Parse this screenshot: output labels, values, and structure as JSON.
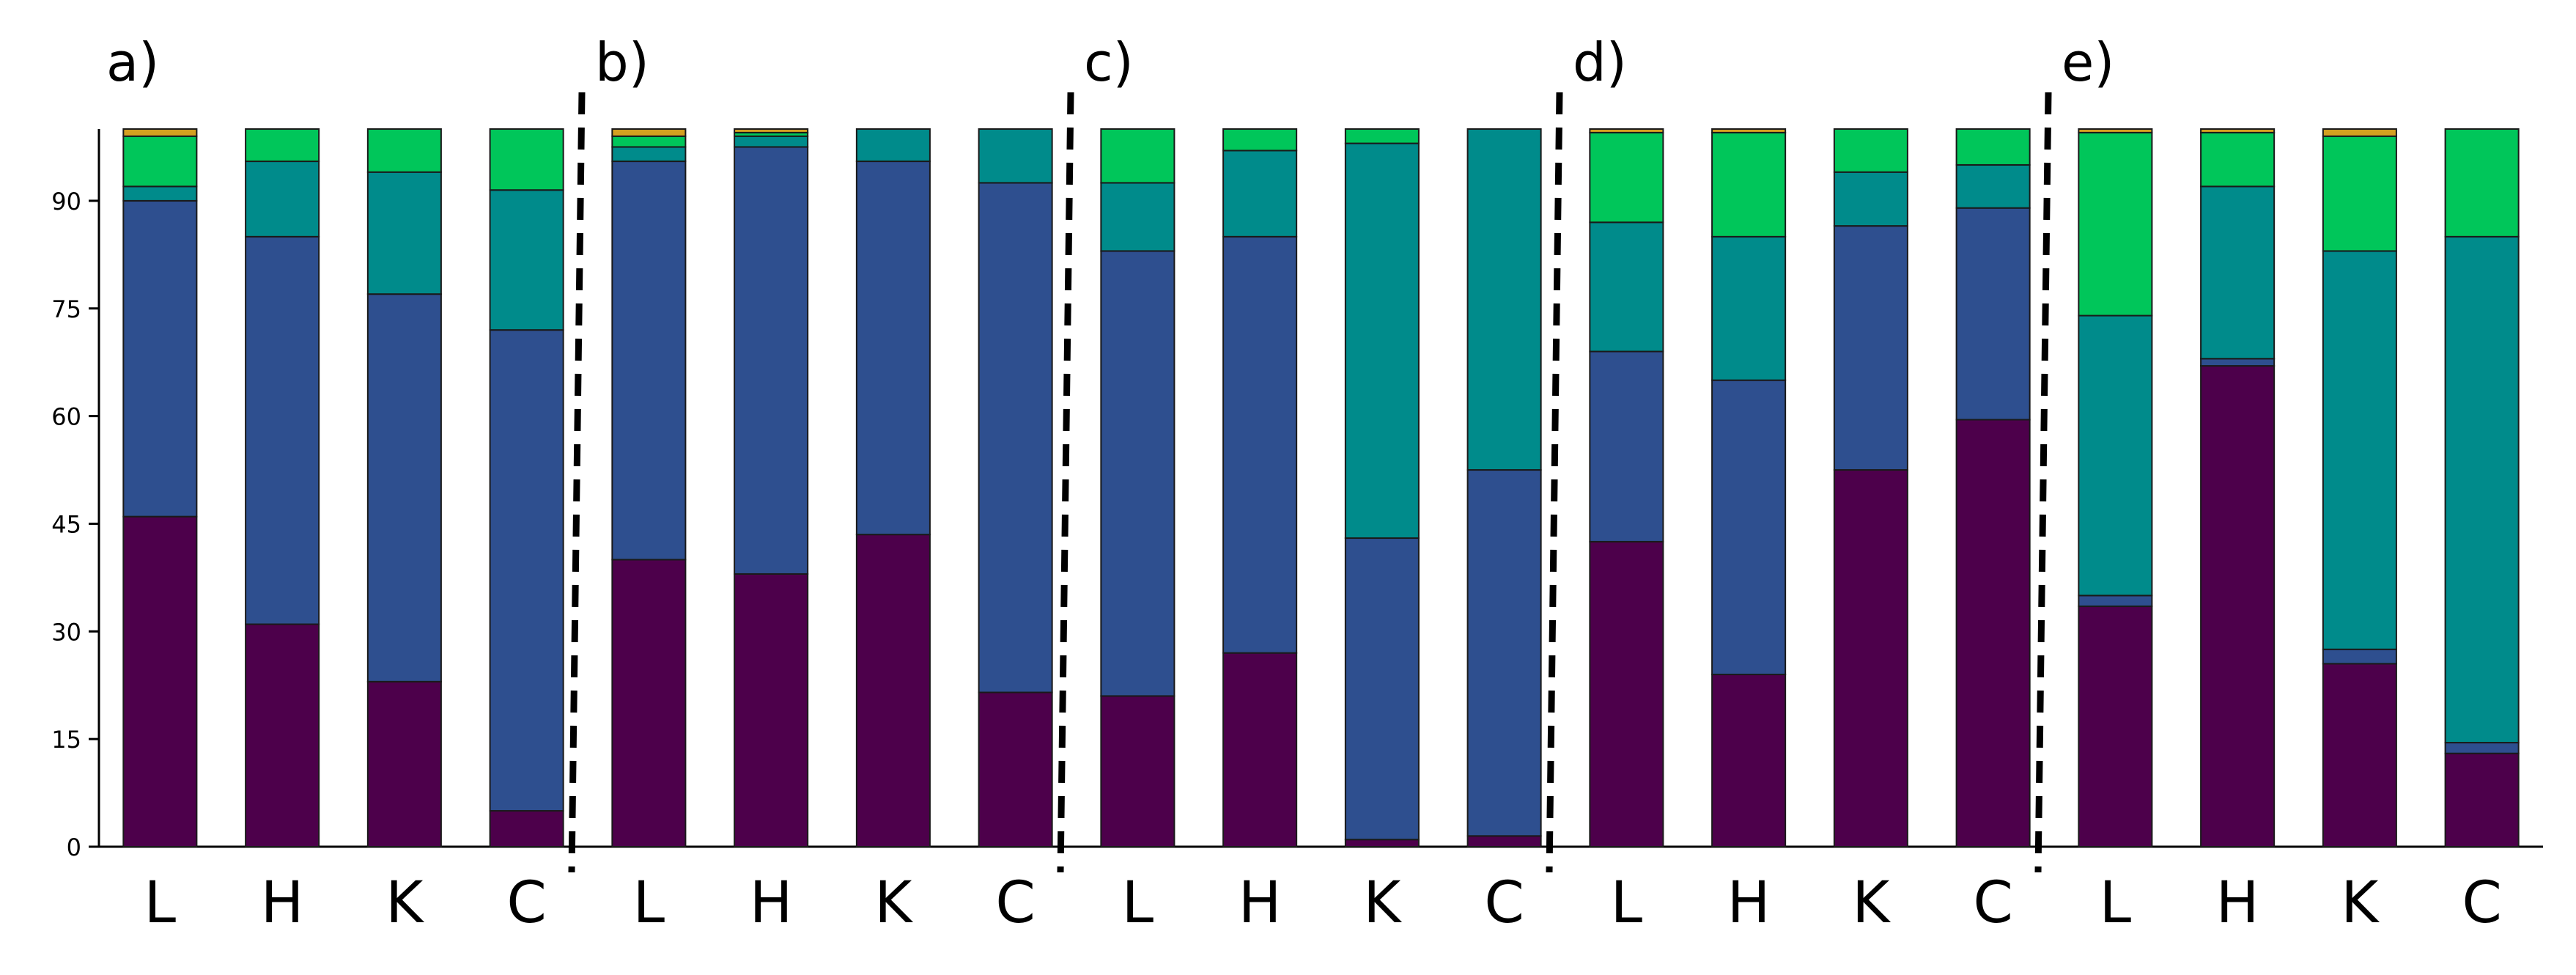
{
  "chart_data": {
    "type": "bar",
    "stacked": true,
    "panels": [
      "a)",
      "b)",
      "c)",
      "d)",
      "e)"
    ],
    "categories": [
      "L",
      "H",
      "K",
      "C"
    ],
    "ylim": [
      0,
      100
    ],
    "yticks": [
      "0",
      "15",
      "30",
      "45",
      "60",
      "75",
      "90"
    ],
    "ytick_values": [
      0,
      15,
      30,
      45,
      60,
      75,
      90
    ],
    "colors": [
      "#4d004b",
      "#2e4f8f",
      "#008b8b",
      "#00c65a",
      "#d4a020"
    ],
    "series_count": 5,
    "data": [
      [
        [
          46,
          44,
          2,
          7,
          1
        ],
        [
          31,
          54,
          10.5,
          4.5,
          0
        ],
        [
          23,
          54,
          17,
          6,
          0
        ],
        [
          5,
          67,
          19.5,
          8.5,
          0
        ]
      ],
      [
        [
          40,
          55.5,
          2,
          1.5,
          1
        ],
        [
          38,
          59.5,
          1.5,
          0.5,
          0.5
        ],
        [
          43.5,
          52,
          4.5,
          0,
          0
        ],
        [
          21.5,
          71,
          7.5,
          0,
          0
        ]
      ],
      [
        [
          21,
          62,
          9.5,
          7.5,
          0
        ],
        [
          27,
          58,
          12,
          3,
          0
        ],
        [
          1,
          42,
          55,
          2,
          0
        ],
        [
          1.5,
          51,
          47.5,
          0,
          0
        ]
      ],
      [
        [
          42.5,
          26.5,
          18,
          12.5,
          0.5
        ],
        [
          24,
          41,
          20,
          14.5,
          0.5
        ],
        [
          52.5,
          34,
          7.5,
          6,
          0
        ],
        [
          59.5,
          29.5,
          6,
          5,
          0
        ]
      ],
      [
        [
          33.5,
          1.5,
          39,
          25.5,
          0.5
        ],
        [
          67,
          1,
          24,
          7.5,
          0.5
        ],
        [
          25.5,
          2,
          55.5,
          16,
          1
        ],
        [
          13,
          1.5,
          70.5,
          15,
          0
        ]
      ]
    ]
  }
}
